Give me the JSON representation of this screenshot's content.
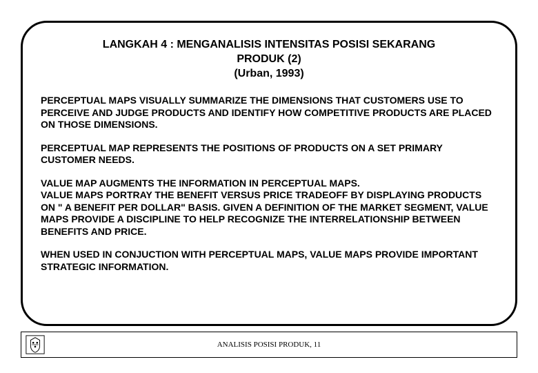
{
  "title": {
    "line1": "LANGKAH 4 : MENGANALISIS INTENSITAS POSISI SEKARANG",
    "line2": "PRODUK (2)",
    "line3": "(Urban, 1993)"
  },
  "paragraphs": [
    "PERCEPTUAL MAPS VISUALLY SUMMARIZE THE DIMENSIONS THAT CUSTOMERS USE TO PERCEIVE AND JUDGE PRODUCTS AND IDENTIFY HOW COMPETITIVE PRODUCTS ARE PLACED ON THOSE DIMENSIONS.",
    "PERCEPTUAL MAP REPRESENTS THE POSITIONS OF PRODUCTS ON A SET PRIMARY CUSTOMER NEEDS.",
    "VALUE MAP AUGMENTS THE INFORMATION IN PERCEPTUAL MAPS.\nVALUE MAPS  PORTRAY THE BENEFIT VERSUS PRICE TRADEOFF BY DISPLAYING PRODUCTS ON \" A BENEFIT PER DOLLAR\" BASIS. GIVEN A DEFINITION OF THE MARKET SEGMENT, VALUE MAPS PROVIDE A DISCIPLINE TO HELP RECOGNIZE THE INTERRELATIONSHIP BETWEEN BENEFITS AND PRICE.",
    "WHEN USED IN CONJUCTION WITH PERCEPTUAL MAPS, VALUE MAPS PROVIDE IMPORTANT STRATEGIC INFORMATION."
  ],
  "footer": {
    "text": "ANALISIS POSISI PRODUK,  11",
    "icon_name": "crest-icon"
  },
  "style": {
    "frame_border_color": "#000000",
    "frame_border_width": 3,
    "frame_border_radius": 38,
    "background_color": "#ffffff",
    "title_fontsize": 16,
    "body_fontsize": 14,
    "footer_fontsize": 11,
    "font_family": "Comic Sans MS"
  }
}
